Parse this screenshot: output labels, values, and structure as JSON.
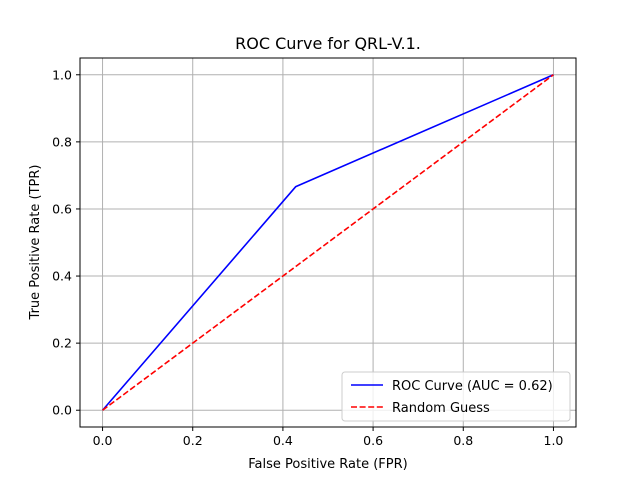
{
  "chart_data": {
    "type": "line",
    "title": "ROC Curve for QRL-V.1.",
    "xlabel": "False Positive Rate (FPR)",
    "ylabel": "True Positive Rate (TPR)",
    "xlim": [
      -0.05,
      1.05
    ],
    "ylim": [
      -0.05,
      1.05
    ],
    "xticks": [
      0.0,
      0.2,
      0.4,
      0.6,
      0.8,
      1.0
    ],
    "yticks": [
      0.0,
      0.2,
      0.4,
      0.6,
      0.8,
      1.0
    ],
    "xtick_labels": [
      "0.0",
      "0.2",
      "0.4",
      "0.6",
      "0.8",
      "1.0"
    ],
    "ytick_labels": [
      "0.0",
      "0.2",
      "0.4",
      "0.6",
      "0.8",
      "1.0"
    ],
    "grid": true,
    "legend_position": "lower-right",
    "series": [
      {
        "name": "ROC Curve (AUC = 0.62)",
        "color": "#0000ff",
        "style": "solid",
        "x": [
          0.0,
          0.4286,
          1.0
        ],
        "y": [
          0.0,
          0.6667,
          1.0
        ]
      },
      {
        "name": "Random Guess",
        "color": "#ff0000",
        "style": "dashed",
        "x": [
          0.0,
          1.0
        ],
        "y": [
          0.0,
          1.0
        ]
      }
    ]
  }
}
